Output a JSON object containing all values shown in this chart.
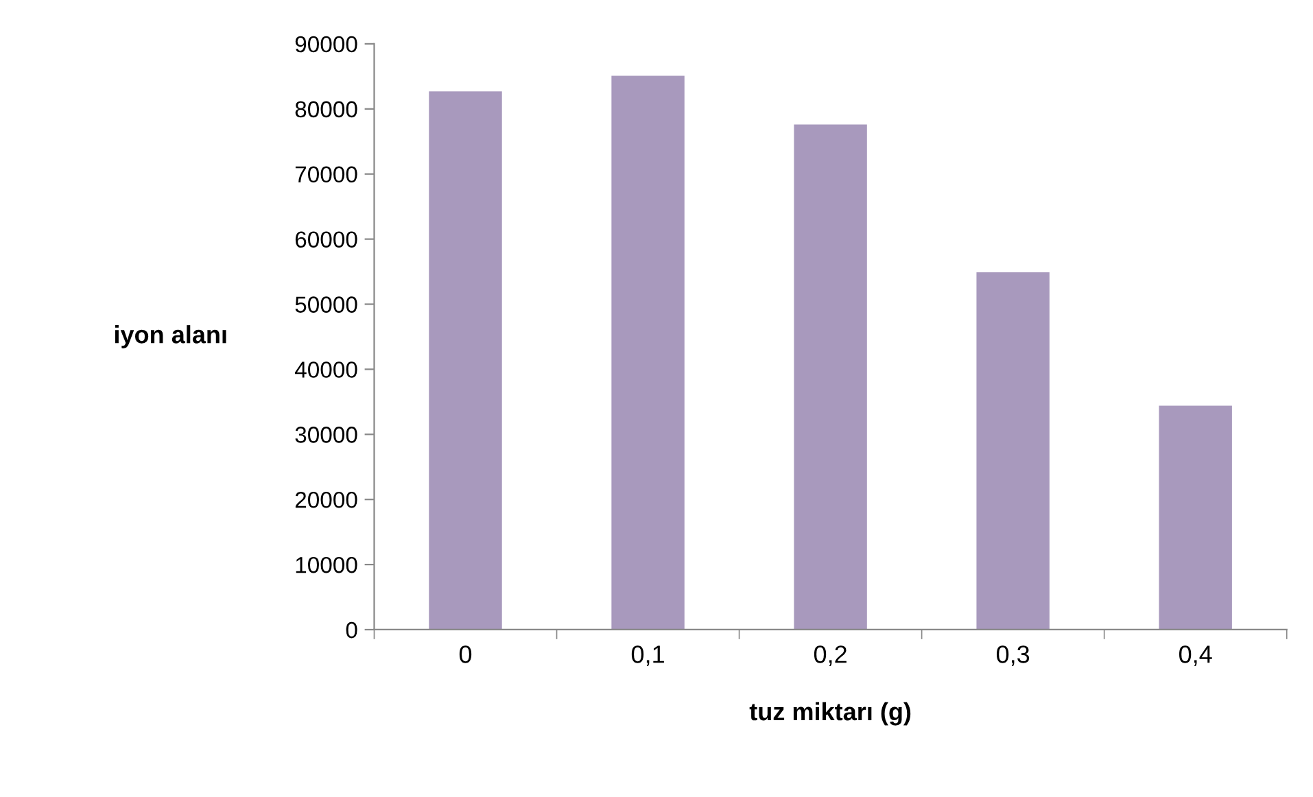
{
  "chart_data": {
    "type": "bar",
    "xlabel": "tuz miktarı (g)",
    "ylabel": "iyon alanı",
    "categories": [
      "0",
      "0,1",
      "0,2",
      "0,3",
      "0,4"
    ],
    "values": [
      82700,
      85100,
      77600,
      54900,
      34400
    ],
    "color": "#a899bd",
    "ylim": [
      0,
      90000
    ],
    "yticks": [
      0,
      10000,
      20000,
      30000,
      40000,
      50000,
      60000,
      70000,
      80000,
      90000
    ],
    "grid": false
  }
}
